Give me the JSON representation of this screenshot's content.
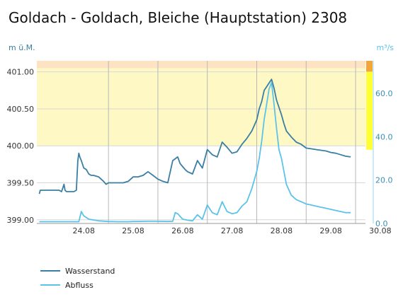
{
  "chart_data": {
    "type": "line",
    "title": "Goldach - Goldach, Bleiche (Hauptstation) 2308",
    "ylabel_left": "m ü.M.",
    "ylabel_right": "m³/s",
    "ylim_left": [
      398.95,
      401.15
    ],
    "ylim_right": [
      0,
      75
    ],
    "yticks_left": [
      "399.00",
      "399.50",
      "400.00",
      "400.50",
      "401.00"
    ],
    "yticks_right": [
      "0.0",
      "20.0",
      "40.0",
      "60.0"
    ],
    "x_ticks": [
      "24.08",
      "25.08",
      "26.08",
      "27.08",
      "28.08",
      "29.08",
      "30.08"
    ],
    "grid": true,
    "legend_position": "bottom-left",
    "bands": [
      {
        "from": 400.0,
        "to": 401.05,
        "color": "#fdf8c4"
      },
      {
        "from": 401.05,
        "to": 401.3,
        "color": "#fde3c4"
      }
    ],
    "right_scale_bar": [
      {
        "from": 0,
        "to": 34,
        "color": "#ffffff"
      },
      {
        "from": 34,
        "to": 70,
        "color": "#ffff33"
      },
      {
        "from": 70,
        "to": 75,
        "color": "#f4a53a"
      }
    ],
    "series": [
      {
        "name": "Wasserstand",
        "axis": "left",
        "color": "#3a7fa3",
        "x": [
          23.6,
          23.62,
          23.7,
          23.8,
          24.0,
          24.05,
          24.1,
          24.12,
          24.15,
          24.2,
          24.25,
          24.3,
          24.35,
          24.38,
          24.4,
          24.42,
          24.45,
          24.5,
          24.55,
          24.6,
          24.65,
          24.7,
          24.8,
          24.9,
          24.95,
          25.0,
          25.05,
          25.1,
          25.2,
          25.3,
          25.4,
          25.5,
          25.55,
          25.6,
          25.7,
          25.8,
          25.9,
          26.0,
          26.1,
          26.2,
          26.3,
          26.4,
          26.45,
          26.5,
          26.55,
          26.6,
          26.7,
          26.8,
          26.9,
          27.0,
          27.1,
          27.2,
          27.3,
          27.4,
          27.5,
          27.6,
          27.7,
          27.8,
          27.9,
          28.0,
          28.05,
          28.1,
          28.15,
          28.2,
          28.25,
          28.3,
          28.35,
          28.4,
          28.45,
          28.5,
          28.55,
          28.6,
          28.7,
          28.8,
          28.9,
          29.0,
          29.1,
          29.2,
          29.3,
          29.4,
          29.5,
          29.6,
          29.7,
          29.8,
          29.9
        ],
        "y": [
          399.35,
          399.4,
          399.4,
          399.4,
          399.4,
          399.38,
          399.48,
          399.4,
          399.38,
          399.38,
          399.38,
          399.38,
          399.4,
          399.8,
          399.9,
          399.85,
          399.8,
          399.7,
          399.68,
          399.62,
          399.6,
          399.6,
          399.58,
          399.52,
          399.48,
          399.5,
          399.5,
          399.5,
          399.5,
          399.5,
          399.52,
          399.58,
          399.58,
          399.58,
          399.6,
          399.65,
          399.6,
          399.55,
          399.52,
          399.5,
          399.8,
          399.85,
          399.76,
          399.72,
          399.68,
          399.65,
          399.62,
          399.8,
          399.7,
          399.95,
          399.88,
          399.85,
          400.05,
          399.98,
          399.9,
          399.92,
          400.02,
          400.1,
          400.2,
          400.35,
          400.5,
          400.6,
          400.75,
          400.8,
          400.85,
          400.9,
          400.78,
          400.62,
          400.52,
          400.42,
          400.3,
          400.2,
          400.12,
          400.05,
          400.02,
          399.97,
          399.96,
          399.95,
          399.94,
          399.93,
          399.91,
          399.9,
          399.88,
          399.86,
          399.85
        ]
      },
      {
        "name": "Abfluss",
        "axis": "right",
        "color": "#5bc3ea",
        "x": [
          23.6,
          23.8,
          24.0,
          24.2,
          24.3,
          24.35,
          24.4,
          24.45,
          24.5,
          24.6,
          24.8,
          25.0,
          25.2,
          25.4,
          25.5,
          25.6,
          25.8,
          26.0,
          26.2,
          26.3,
          26.35,
          26.4,
          26.5,
          26.6,
          26.7,
          26.8,
          26.9,
          27.0,
          27.1,
          27.2,
          27.3,
          27.4,
          27.5,
          27.6,
          27.7,
          27.8,
          27.9,
          28.0,
          28.05,
          28.1,
          28.15,
          28.2,
          28.25,
          28.3,
          28.35,
          28.4,
          28.45,
          28.5,
          28.55,
          28.6,
          28.7,
          28.8,
          28.9,
          29.0,
          29.1,
          29.2,
          29.3,
          29.4,
          29.5,
          29.6,
          29.7,
          29.8,
          29.9
        ],
        "y": [
          0.8,
          0.8,
          0.8,
          0.8,
          0.8,
          0.8,
          0.8,
          5.5,
          3.5,
          2.0,
          1.2,
          0.9,
          0.8,
          0.8,
          0.9,
          0.9,
          1.0,
          1.0,
          0.9,
          1.0,
          5.0,
          4.5,
          2.0,
          1.5,
          1.2,
          4.0,
          2.0,
          8.5,
          5.0,
          4.0,
          10.0,
          5.5,
          4.5,
          5.0,
          8.0,
          10.0,
          16.0,
          24.0,
          30.0,
          38.0,
          48.0,
          55.0,
          62.0,
          65.0,
          55.0,
          44.0,
          34.0,
          30.0,
          24.0,
          18.0,
          13.0,
          11.0,
          10.0,
          9.0,
          8.5,
          8.0,
          7.5,
          7.0,
          6.5,
          6.0,
          5.5,
          5.0,
          5.0
        ]
      }
    ]
  },
  "legend": [
    {
      "label": "Wasserstand",
      "color": "#3a7fa3"
    },
    {
      "label": "Abfluss",
      "color": "#5bc3ea"
    }
  ]
}
